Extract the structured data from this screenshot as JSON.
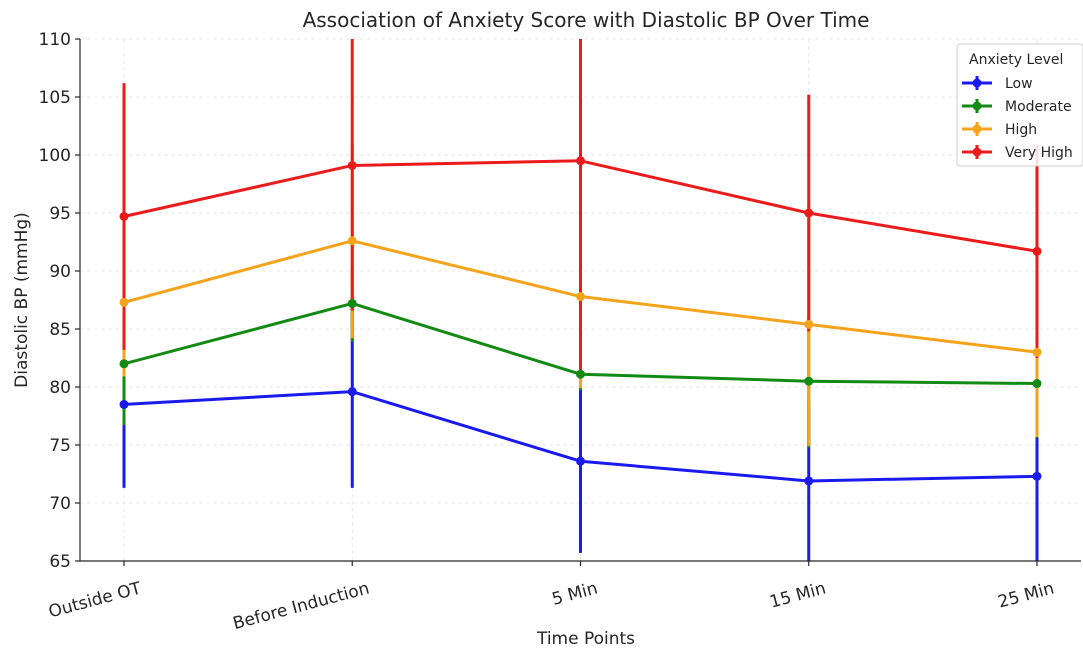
{
  "chart_data": {
    "type": "line",
    "title": "Association of Anxiety Score with Diastolic BP Over Time",
    "xlabel": "Time Points",
    "ylabel": "Diastolic BP (mmHg)",
    "categories": [
      "Outside OT",
      "Before Induction",
      "5 Min",
      "15 Min",
      "25 Min"
    ],
    "ylim": [
      65,
      110
    ],
    "yticks": [
      65,
      70,
      75,
      80,
      85,
      90,
      95,
      100,
      105,
      110
    ],
    "grid": true,
    "legend": {
      "title": "Anxiety Level",
      "placement": "top-right"
    },
    "series": [
      {
        "name": "Low",
        "color": "#1a1aee",
        "values": [
          78.5,
          79.6,
          73.6,
          71.9,
          72.3
        ],
        "error_low": [
          71.3,
          71.3,
          65.7,
          65.0,
          65.0
        ],
        "error_high": [
          85.7,
          87.9,
          81.5,
          78.8,
          79.6
        ]
      },
      {
        "name": "Moderate",
        "color": "#138a13",
        "values": [
          82.0,
          87.2,
          81.1,
          80.5,
          80.3
        ],
        "error_low": [
          76.7,
          83.9,
          79.7,
          74.8,
          75.6
        ],
        "error_high": [
          87.3,
          90.5,
          82.5,
          86.2,
          85.0
        ]
      },
      {
        "name": "High",
        "color": "#f5a31a",
        "values": [
          87.3,
          92.6,
          87.8,
          85.4,
          83.0
        ],
        "error_low": [
          80.9,
          84.2,
          79.9,
          74.9,
          75.7
        ],
        "error_high": [
          93.7,
          101.0,
          95.7,
          95.9,
          90.3
        ]
      },
      {
        "name": "Very High",
        "color": "#ec1b1b",
        "values": [
          94.7,
          99.1,
          99.5,
          95.0,
          91.7
        ],
        "error_low": [
          83.2,
          86.6,
          81.0,
          84.8,
          82.5
        ],
        "error_high": [
          106.2,
          110.0,
          110.0,
          105.2,
          100.9
        ]
      }
    ]
  }
}
